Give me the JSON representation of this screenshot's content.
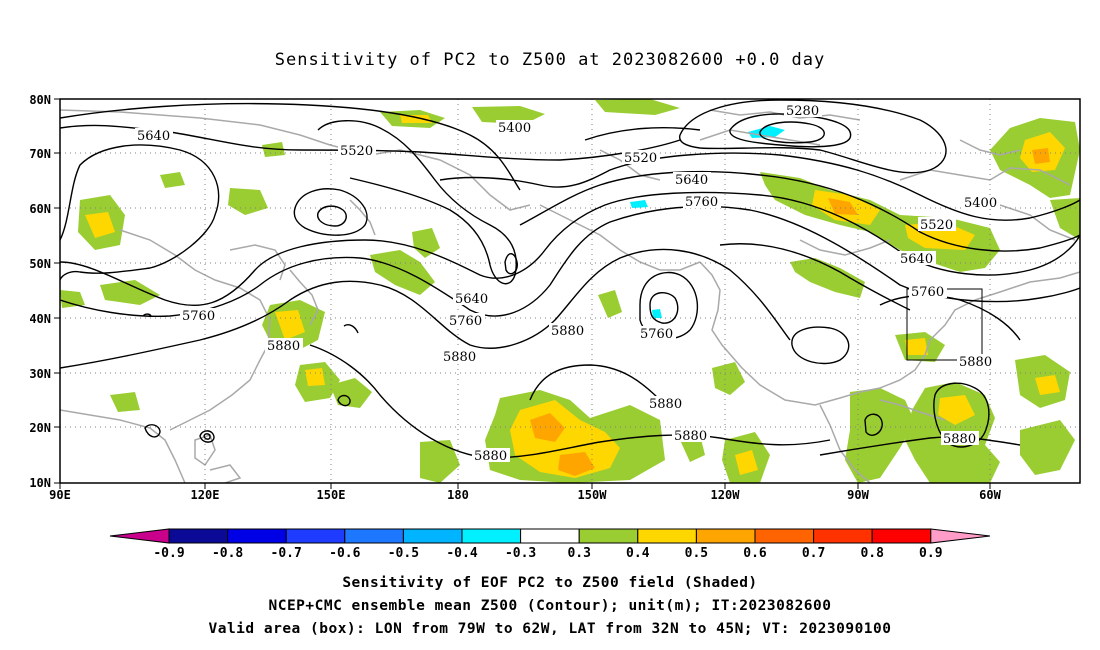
{
  "title": "Sensitivity of PC2 to Z500 at 2023082600 +0.0 day",
  "lat_labels": [
    "80N",
    "70N",
    "60N",
    "50N",
    "40N",
    "30N",
    "20N",
    "10N"
  ],
  "lon_labels": [
    "90E",
    "120E",
    "150E",
    "180",
    "150W",
    "120W",
    "90W",
    "60W"
  ],
  "contour_labels": {
    "c5640_a": "5640",
    "c5520_a": "5520",
    "c5400_a": "5400",
    "c5520_b": "5520",
    "c5280": "5280",
    "c5640_b": "5640",
    "c5760_a": "5760",
    "c5760_b": "5760",
    "c5640_c": "5640",
    "c5760_c": "5760",
    "c5880_a": "5880",
    "c5880_b": "5880",
    "c5760_d": "5760",
    "c5880_c": "5880",
    "c5880_d": "5880",
    "c5880_e": "5880",
    "c5400_b": "5400",
    "c5520_c": "5520",
    "c5640_d": "5640",
    "c5760_e": "5760",
    "c5880_f": "5880",
    "c5880_g": "5880"
  },
  "colorbar": {
    "labels": [
      "-0.9",
      "-0.8",
      "-0.7",
      "-0.6",
      "-0.5",
      "-0.4",
      "-0.3",
      "0.3",
      "0.4",
      "0.5",
      "0.6",
      "0.7",
      "0.8",
      "0.9"
    ],
    "colors": [
      "#0a0a96",
      "#0000e6",
      "#1e3cff",
      "#1e78ff",
      "#00b4ff",
      "#00f0ff",
      "#ffffff",
      "#9acd32",
      "#ffd700",
      "#ffa500",
      "#ff6400",
      "#ff3200",
      "#ff0000"
    ],
    "left_tip_color": "#c8008c",
    "right_tip_color": "#ff9cc8"
  },
  "shading_colors": {
    "green": "#9acd32",
    "yellow": "#ffd700",
    "orange": "#ffa500",
    "cyan": "#00f0ff"
  },
  "footer": {
    "line1": "Sensitivity of EOF PC2 to Z500 field (Shaded)",
    "line2": "NCEP+CMC ensemble mean Z500 (Contour); unit(m); IT:2023082600",
    "line3": "Valid area (box): LON from 79W to 62W, LAT from 32N to 45N; VT: 2023090100"
  }
}
